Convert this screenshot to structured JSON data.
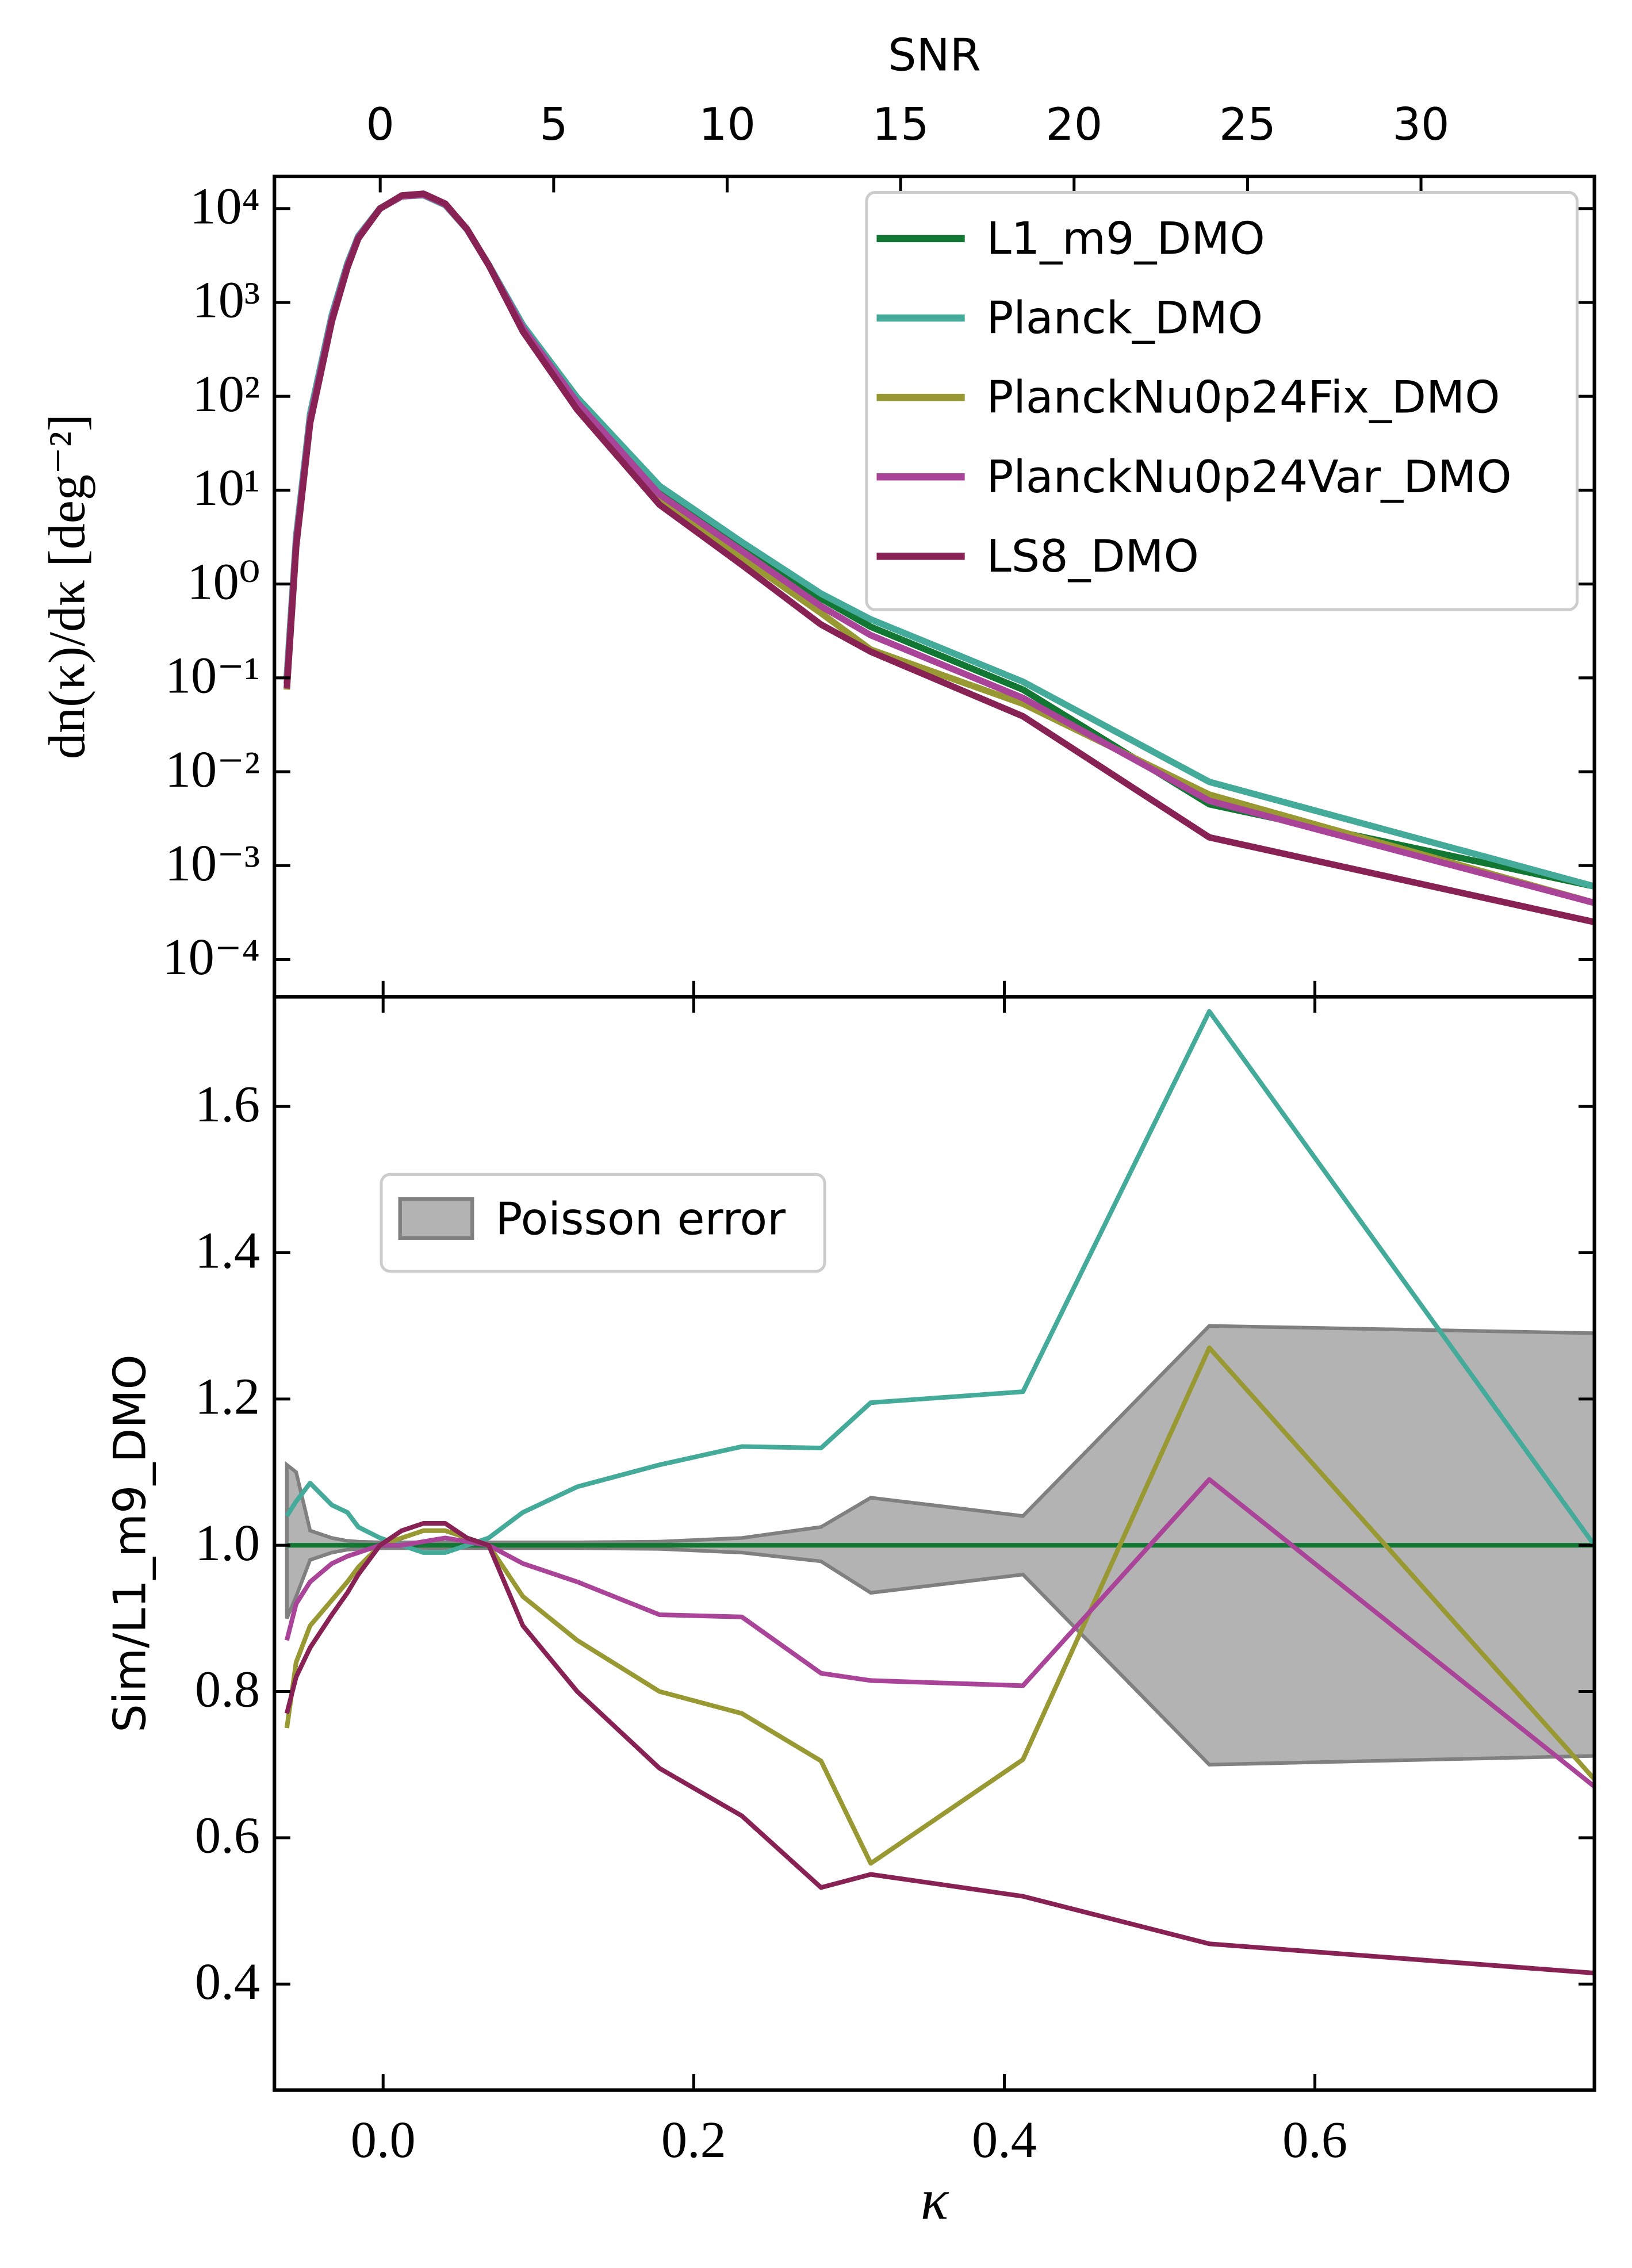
{
  "chart_data": [
    {
      "type": "line",
      "ylabel": "dn(κ)/dκ [deg⁻²]",
      "x2label": "SNR",
      "log_y": true,
      "legend": "upper right",
      "xlim": [
        -0.07,
        0.78
      ],
      "xticks": [
        0,
        0.2,
        0.4,
        0.6
      ],
      "x2lim": [
        -3.05,
        35.0
      ],
      "x2ticks": [
        0,
        5,
        10,
        15,
        20,
        25,
        30
      ],
      "ylim": [
        4e-05,
        22000
      ],
      "yticks": [
        {
          "value": 0.0001,
          "label": "10⁻⁴"
        },
        {
          "value": 0.001,
          "label": "10⁻³"
        },
        {
          "value": 0.01,
          "label": "10⁻²"
        },
        {
          "value": 0.1,
          "label": "10⁻¹"
        },
        {
          "value": 1,
          "label": "10⁰"
        },
        {
          "value": 10,
          "label": "10¹"
        },
        {
          "value": 100,
          "label": "10²"
        },
        {
          "value": 1000,
          "label": "10³"
        },
        {
          "value": 10000,
          "label": "10⁴"
        }
      ],
      "x": [
        -0.062,
        -0.056,
        -0.047,
        -0.033,
        -0.023,
        -0.016,
        -0.002,
        0.012,
        0.026,
        0.04,
        0.054,
        0.068,
        0.09,
        0.125,
        0.178,
        0.231,
        0.282,
        0.314,
        0.412,
        0.532,
        0.78
      ],
      "series": [
        {
          "name": "L1_m9_DMO",
          "color": "#117733",
          "values": [
            0.1,
            3,
            60,
            700,
            2500,
            5000,
            10000,
            13500,
            14000,
            11000,
            6000,
            2500,
            550,
            90,
            10,
            2.5,
            0.7,
            0.35,
            0.075,
            0.0045,
            0.0006
          ]
        },
        {
          "name": "Planck_DMO",
          "color": "#44aa99",
          "values": [
            0.104,
            3.2,
            65,
            740,
            2610,
            5100,
            10100,
            13500,
            13900,
            10900,
            6000,
            2530,
            575,
            97,
            11.1,
            2.8,
            0.79,
            0.42,
            0.091,
            0.0078,
            0.0006
          ]
        },
        {
          "name": "PlanckNu0p24Fix_DMO",
          "color": "#999933",
          "values": [
            0.075,
            2.5,
            53,
            650,
            2380,
            4850,
            10000,
            13600,
            14300,
            11200,
            6060,
            2500,
            510,
            78,
            8,
            1.9,
            0.49,
            0.2,
            0.053,
            0.0057,
            0.0004
          ]
        },
        {
          "name": "PlanckNu0p24Var_DMO",
          "color": "#aa4499",
          "values": [
            0.087,
            2.8,
            57,
            680,
            2460,
            4950,
            10000,
            13500,
            14100,
            11100,
            6030,
            2500,
            536,
            86,
            9,
            2.25,
            0.58,
            0.285,
            0.061,
            0.0049,
            0.0004
          ]
        },
        {
          "name": "LS8_DMO",
          "color": "#882255",
          "values": [
            0.077,
            2.5,
            52,
            630,
            2340,
            4800,
            10000,
            13800,
            14400,
            11300,
            6060,
            2500,
            490,
            72,
            7,
            1.6,
            0.37,
            0.19,
            0.039,
            0.002,
            0.00025
          ]
        }
      ]
    },
    {
      "type": "line",
      "xlabel": "κ",
      "ylabel": "Sim/L1_m9_DMO",
      "legend": "upper left",
      "xlim": [
        -0.07,
        0.78
      ],
      "xticks": [
        {
          "value": 0,
          "label": "0.0"
        },
        0.2,
        0.4,
        0.6
      ],
      "ylim": [
        0.255,
        1.75
      ],
      "yticks": [
        0.4,
        0.6,
        0.8,
        {
          "value": 1,
          "label": "1.0"
        },
        1.2,
        1.4,
        1.6
      ],
      "x": [
        -0.062,
        -0.056,
        -0.047,
        -0.033,
        -0.023,
        -0.016,
        -0.002,
        0.012,
        0.026,
        0.04,
        0.054,
        0.068,
        0.09,
        0.125,
        0.178,
        0.231,
        0.282,
        0.314,
        0.412,
        0.532,
        0.78
      ],
      "band": {
        "name": "Poisson error",
        "color": "#b3b3b3",
        "upper": [
          1.11,
          1.1,
          1.02,
          1.01,
          1.006,
          1.005,
          1.004,
          1.004,
          1.004,
          1.004,
          1.004,
          1.004,
          1.004,
          1.004,
          1.005,
          1.01,
          1.025,
          1.065,
          1.04,
          1.3,
          1.29
        ],
        "lower": [
          0.9,
          0.93,
          0.98,
          0.99,
          0.994,
          0.995,
          0.996,
          0.996,
          0.996,
          0.996,
          0.996,
          0.996,
          0.996,
          0.996,
          0.995,
          0.99,
          0.978,
          0.935,
          0.96,
          0.7,
          0.712
        ]
      },
      "series": [
        {
          "color": "#117733",
          "values": [
            1,
            1,
            1,
            1,
            1,
            1,
            1,
            1,
            1,
            1,
            1,
            1,
            1,
            1,
            1,
            1,
            1,
            1,
            1,
            1,
            1
          ]
        },
        {
          "color": "#44aa99",
          "values": [
            1.04,
            1.06,
            1.085,
            1.055,
            1.045,
            1.025,
            1.01,
            1.0,
            0.99,
            0.99,
            1.0,
            1.01,
            1.045,
            1.08,
            1.11,
            1.135,
            1.133,
            1.195,
            1.21,
            1.73,
            1.0
          ]
        },
        {
          "color": "#999933",
          "values": [
            0.75,
            0.84,
            0.89,
            0.925,
            0.95,
            0.97,
            1.0,
            1.01,
            1.02,
            1.02,
            1.01,
            1.0,
            0.93,
            0.87,
            0.8,
            0.77,
            0.705,
            0.565,
            0.707,
            1.27,
            0.68
          ]
        },
        {
          "color": "#aa4499",
          "values": [
            0.87,
            0.92,
            0.95,
            0.975,
            0.985,
            0.99,
            1.0,
            1.0,
            1.005,
            1.01,
            1.005,
            1.0,
            0.975,
            0.95,
            0.905,
            0.902,
            0.825,
            0.815,
            0.808,
            1.09,
            0.67
          ]
        },
        {
          "color": "#882255",
          "values": [
            0.77,
            0.82,
            0.86,
            0.905,
            0.935,
            0.96,
            1.0,
            1.02,
            1.03,
            1.03,
            1.01,
            1.0,
            0.89,
            0.8,
            0.695,
            0.63,
            0.532,
            0.55,
            0.52,
            0.455,
            0.415
          ]
        }
      ]
    }
  ]
}
